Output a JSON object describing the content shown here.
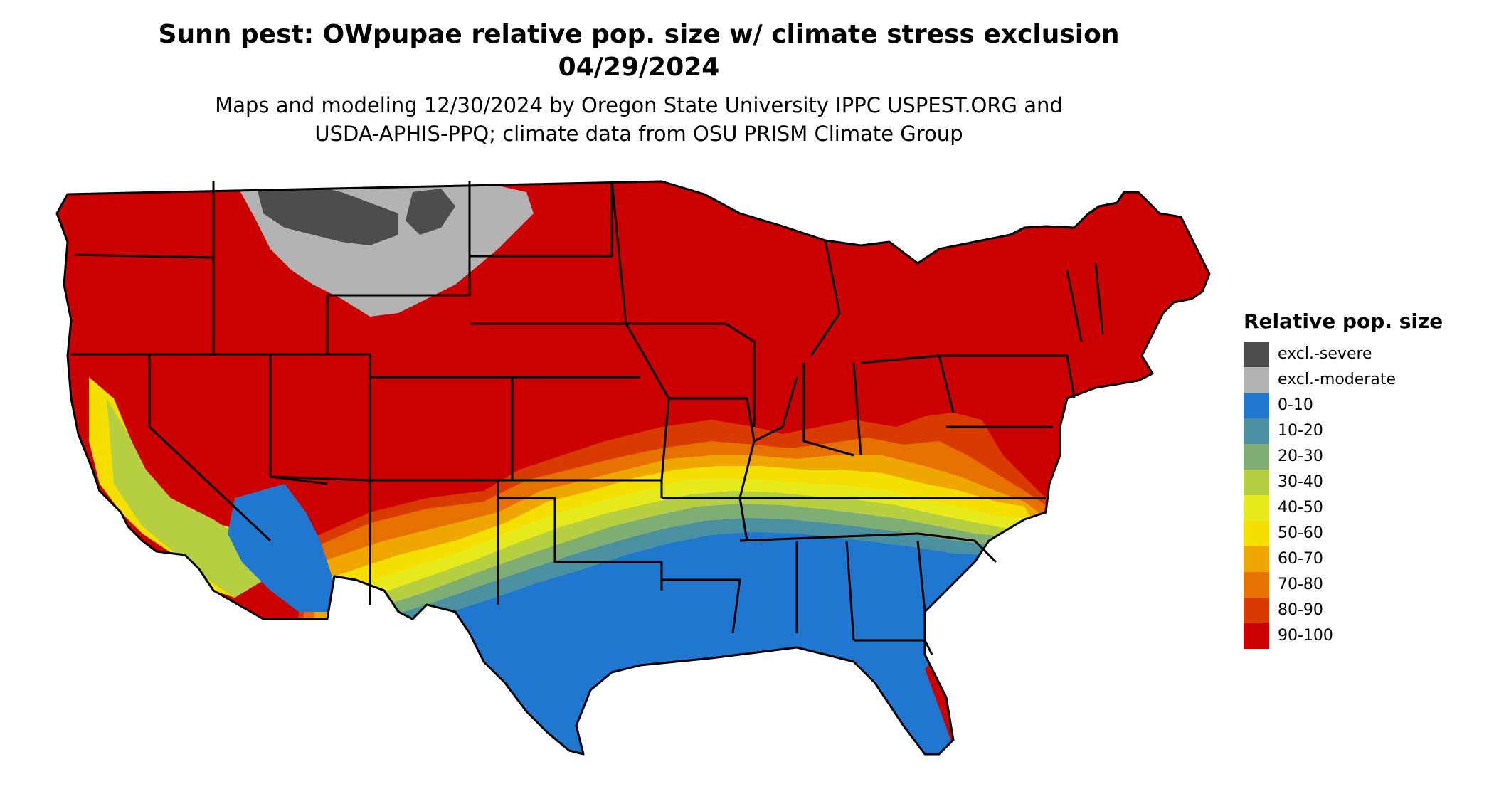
{
  "title_line1": "Sunn pest: OWpupae relative pop. size w/ climate stress exclusion",
  "title_line2": "04/29/2024",
  "subtitle_line1": "Maps and modeling 12/30/2024 by Oregon State University IPPC USPEST.ORG and",
  "subtitle_line2": "USDA-APHIS-PPQ; climate data from OSU PRISM Climate Group",
  "legend": {
    "title": "Relative pop. size",
    "items": [
      {
        "label": "excl.-severe",
        "color": "#4d4d4d"
      },
      {
        "label": "excl.-moderate",
        "color": "#b3b3b3"
      },
      {
        "label": "0-10",
        "color": "#1f77d0"
      },
      {
        "label": "10-20",
        "color": "#4a90a0"
      },
      {
        "label": "20-30",
        "color": "#7fae74"
      },
      {
        "label": "30-40",
        "color": "#b5cf40"
      },
      {
        "label": "40-50",
        "color": "#e6ea1a"
      },
      {
        "label": "50-60",
        "color": "#f5df00"
      },
      {
        "label": "60-70",
        "color": "#eda700"
      },
      {
        "label": "70-80",
        "color": "#e67000"
      },
      {
        "label": "80-90",
        "color": "#d93a00"
      },
      {
        "label": "90-100",
        "color": "#cc0000"
      }
    ]
  }
}
